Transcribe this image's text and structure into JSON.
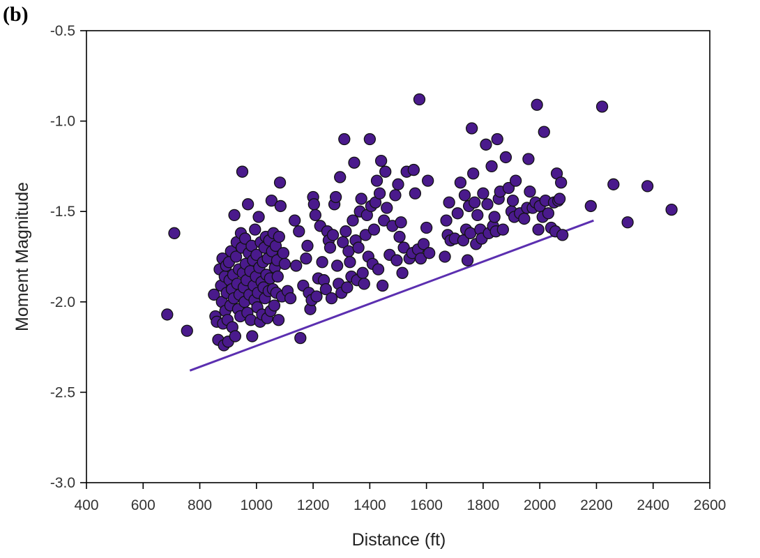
{
  "panel_label": "(b)",
  "colors": {
    "point_fill": "#4a1a8c",
    "point_stroke": "#111111",
    "line": "#5b2fb0",
    "axis": "#000000"
  },
  "chart_data": {
    "type": "scatter",
    "xlabel": "Distance (ft)",
    "ylabel": "Moment Magnitude",
    "xlim": [
      400,
      2600
    ],
    "ylim": [
      -3.0,
      -0.5
    ],
    "x_ticks": [
      "400",
      "600",
      "800",
      "1000",
      "1200",
      "1400",
      "1600",
      "1800",
      "2000",
      "2200",
      "2400",
      "2600"
    ],
    "y_ticks": [
      "-0.5",
      "-1.0",
      "-1.5",
      "-2.0",
      "-2.5",
      "-3.0"
    ],
    "grid": false,
    "series": [
      {
        "points": [
          [
            685,
            -2.07
          ],
          [
            710,
            -1.62
          ],
          [
            755,
            -2.16
          ],
          [
            850,
            -1.96
          ],
          [
            855,
            -2.08
          ],
          [
            860,
            -2.11
          ],
          [
            865,
            -2.21
          ],
          [
            870,
            -1.82
          ],
          [
            875,
            -1.91
          ],
          [
            878,
            -2.0
          ],
          [
            880,
            -1.76
          ],
          [
            882,
            -2.12
          ],
          [
            885,
            -2.24
          ],
          [
            888,
            -1.86
          ],
          [
            890,
            -2.05
          ],
          [
            893,
            -1.8
          ],
          [
            895,
            -1.95
          ],
          [
            898,
            -2.1
          ],
          [
            900,
            -2.22
          ],
          [
            903,
            -1.78
          ],
          [
            905,
            -1.88
          ],
          [
            908,
            -2.02
          ],
          [
            910,
            -1.72
          ],
          [
            913,
            -1.93
          ],
          [
            915,
            -2.14
          ],
          [
            918,
            -1.85
          ],
          [
            920,
            -1.98
          ],
          [
            922,
            -1.52
          ],
          [
            925,
            -2.19
          ],
          [
            928,
            -1.75
          ],
          [
            930,
            -1.67
          ],
          [
            932,
            -1.9
          ],
          [
            935,
            -2.04
          ],
          [
            938,
            -1.82
          ],
          [
            940,
            -1.96
          ],
          [
            943,
            -2.08
          ],
          [
            945,
            -1.62
          ],
          [
            948,
            -1.7
          ],
          [
            950,
            -1.28
          ],
          [
            952,
            -1.84
          ],
          [
            955,
            -1.92
          ],
          [
            958,
            -2.0
          ],
          [
            960,
            -1.65
          ],
          [
            962,
            -1.79
          ],
          [
            965,
            -1.88
          ],
          [
            968,
            -2.06
          ],
          [
            970,
            -1.46
          ],
          [
            973,
            -1.73
          ],
          [
            975,
            -1.96
          ],
          [
            978,
            -1.83
          ],
          [
            980,
            -2.1
          ],
          [
            983,
            -1.69
          ],
          [
            985,
            -2.19
          ],
          [
            988,
            -1.77
          ],
          [
            990,
            -1.91
          ],
          [
            993,
            -1.99
          ],
          [
            995,
            -1.6
          ],
          [
            998,
            -1.86
          ],
          [
            1000,
            -1.74
          ],
          [
            1003,
            -2.03
          ],
          [
            1005,
            -1.95
          ],
          [
            1008,
            -1.53
          ],
          [
            1010,
            -1.81
          ],
          [
            1013,
            -2.11
          ],
          [
            1015,
            -1.67
          ],
          [
            1018,
            -1.89
          ],
          [
            1020,
            -2.07
          ],
          [
            1023,
            -1.78
          ],
          [
            1025,
            -1.92
          ],
          [
            1028,
            -1.7
          ],
          [
            1030,
            -1.98
          ],
          [
            1033,
            -1.64
          ],
          [
            1035,
            -1.85
          ],
          [
            1038,
            -2.09
          ],
          [
            1040,
            -1.76
          ],
          [
            1043,
            -1.94
          ],
          [
            1045,
            -1.66
          ],
          [
            1048,
            -1.87
          ],
          [
            1050,
            -2.05
          ],
          [
            1053,
            -1.44
          ],
          [
            1055,
            -1.72
          ],
          [
            1058,
            -1.93
          ],
          [
            1060,
            -1.62
          ],
          [
            1063,
            -2.02
          ],
          [
            1065,
            -1.81
          ],
          [
            1068,
            -1.69
          ],
          [
            1070,
            -1.95
          ],
          [
            1073,
            -1.77
          ],
          [
            1075,
            -1.86
          ],
          [
            1078,
            -2.1
          ],
          [
            1080,
            -1.64
          ],
          [
            1083,
            -1.34
          ],
          [
            1085,
            -1.47
          ],
          [
            1090,
            -1.97
          ],
          [
            1095,
            -1.73
          ],
          [
            1100,
            -1.79
          ],
          [
            1110,
            -1.94
          ],
          [
            1120,
            -1.98
          ],
          [
            1135,
            -1.55
          ],
          [
            1140,
            -1.8
          ],
          [
            1150,
            -1.61
          ],
          [
            1155,
            -2.2
          ],
          [
            1165,
            -1.91
          ],
          [
            1175,
            -1.76
          ],
          [
            1180,
            -1.69
          ],
          [
            1185,
            -1.95
          ],
          [
            1190,
            -2.04
          ],
          [
            1195,
            -1.99
          ],
          [
            1200,
            -1.42
          ],
          [
            1203,
            -1.46
          ],
          [
            1208,
            -1.52
          ],
          [
            1212,
            -1.97
          ],
          [
            1218,
            -1.87
          ],
          [
            1225,
            -1.58
          ],
          [
            1232,
            -1.78
          ],
          [
            1238,
            -1.88
          ],
          [
            1245,
            -1.93
          ],
          [
            1250,
            -1.61
          ],
          [
            1255,
            -1.66
          ],
          [
            1260,
            -1.7
          ],
          [
            1265,
            -1.98
          ],
          [
            1270,
            -1.63
          ],
          [
            1275,
            -1.46
          ],
          [
            1280,
            -1.42
          ],
          [
            1285,
            -1.8
          ],
          [
            1290,
            -1.9
          ],
          [
            1295,
            -1.31
          ],
          [
            1300,
            -1.95
          ],
          [
            1305,
            -1.67
          ],
          [
            1310,
            -1.1
          ],
          [
            1315,
            -1.61
          ],
          [
            1320,
            -1.92
          ],
          [
            1325,
            -1.72
          ],
          [
            1330,
            -1.78
          ],
          [
            1335,
            -1.86
          ],
          [
            1340,
            -1.55
          ],
          [
            1345,
            -1.23
          ],
          [
            1350,
            -1.66
          ],
          [
            1355,
            -1.88
          ],
          [
            1360,
            -1.7
          ],
          [
            1365,
            -1.5
          ],
          [
            1370,
            -1.43
          ],
          [
            1375,
            -1.84
          ],
          [
            1380,
            -1.9
          ],
          [
            1385,
            -1.63
          ],
          [
            1390,
            -1.52
          ],
          [
            1395,
            -1.75
          ],
          [
            1400,
            -1.1
          ],
          [
            1405,
            -1.47
          ],
          [
            1410,
            -1.79
          ],
          [
            1415,
            -1.6
          ],
          [
            1420,
            -1.45
          ],
          [
            1425,
            -1.33
          ],
          [
            1430,
            -1.82
          ],
          [
            1435,
            -1.4
          ],
          [
            1440,
            -1.22
          ],
          [
            1445,
            -1.91
          ],
          [
            1450,
            -1.55
          ],
          [
            1455,
            -1.28
          ],
          [
            1460,
            -1.48
          ],
          [
            1470,
            -1.74
          ],
          [
            1480,
            -1.58
          ],
          [
            1490,
            -1.41
          ],
          [
            1495,
            -1.77
          ],
          [
            1500,
            -1.35
          ],
          [
            1505,
            -1.64
          ],
          [
            1510,
            -1.56
          ],
          [
            1515,
            -1.84
          ],
          [
            1520,
            -1.7
          ],
          [
            1530,
            -1.28
          ],
          [
            1540,
            -1.76
          ],
          [
            1550,
            -1.73
          ],
          [
            1555,
            -1.27
          ],
          [
            1560,
            -1.4
          ],
          [
            1570,
            -1.71
          ],
          [
            1575,
            -0.88
          ],
          [
            1580,
            -1.76
          ],
          [
            1590,
            -1.68
          ],
          [
            1600,
            -1.59
          ],
          [
            1605,
            -1.33
          ],
          [
            1610,
            -1.73
          ],
          [
            1665,
            -1.75
          ],
          [
            1670,
            -1.55
          ],
          [
            1675,
            -1.63
          ],
          [
            1680,
            -1.45
          ],
          [
            1685,
            -1.66
          ],
          [
            1700,
            -1.65
          ],
          [
            1710,
            -1.51
          ],
          [
            1720,
            -1.34
          ],
          [
            1730,
            -1.66
          ],
          [
            1735,
            -1.41
          ],
          [
            1740,
            -1.6
          ],
          [
            1745,
            -1.77
          ],
          [
            1750,
            -1.47
          ],
          [
            1755,
            -1.62
          ],
          [
            1760,
            -1.04
          ],
          [
            1765,
            -1.29
          ],
          [
            1770,
            -1.45
          ],
          [
            1775,
            -1.68
          ],
          [
            1780,
            -1.52
          ],
          [
            1790,
            -1.6
          ],
          [
            1795,
            -1.65
          ],
          [
            1800,
            -1.4
          ],
          [
            1810,
            -1.13
          ],
          [
            1815,
            -1.46
          ],
          [
            1820,
            -1.62
          ],
          [
            1830,
            -1.25
          ],
          [
            1835,
            -1.58
          ],
          [
            1840,
            -1.53
          ],
          [
            1845,
            -1.61
          ],
          [
            1850,
            -1.1
          ],
          [
            1855,
            -1.43
          ],
          [
            1860,
            -1.39
          ],
          [
            1870,
            -1.6
          ],
          [
            1880,
            -1.2
          ],
          [
            1890,
            -1.37
          ],
          [
            1900,
            -1.5
          ],
          [
            1905,
            -1.44
          ],
          [
            1910,
            -1.53
          ],
          [
            1915,
            -1.33
          ],
          [
            1930,
            -1.51
          ],
          [
            1945,
            -1.54
          ],
          [
            1955,
            -1.48
          ],
          [
            1960,
            -1.21
          ],
          [
            1965,
            -1.39
          ],
          [
            1975,
            -1.48
          ],
          [
            1985,
            -1.45
          ],
          [
            1990,
            -0.91
          ],
          [
            1995,
            -1.6
          ],
          [
            2000,
            -1.47
          ],
          [
            2010,
            -1.53
          ],
          [
            2015,
            -1.06
          ],
          [
            2020,
            -1.44
          ],
          [
            2030,
            -1.51
          ],
          [
            2040,
            -1.59
          ],
          [
            2050,
            -1.45
          ],
          [
            2055,
            -1.61
          ],
          [
            2060,
            -1.29
          ],
          [
            2065,
            -1.44
          ],
          [
            2070,
            -1.43
          ],
          [
            2075,
            -1.34
          ],
          [
            2080,
            -1.63
          ],
          [
            2180,
            -1.47
          ],
          [
            2220,
            -0.92
          ],
          [
            2260,
            -1.35
          ],
          [
            2310,
            -1.56
          ],
          [
            2380,
            -1.36
          ],
          [
            2465,
            -1.49
          ]
        ]
      }
    ],
    "trend_line": {
      "x": [
        765,
        2190
      ],
      "y": [
        -2.38,
        -1.55
      ]
    }
  }
}
